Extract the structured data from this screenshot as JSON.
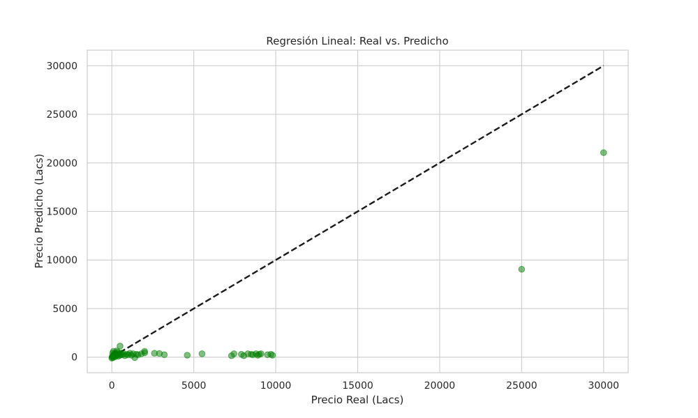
{
  "chart_data": {
    "type": "scatter",
    "title": "Regresión Lineal: Real vs. Predicho",
    "xlabel": "Precio Real (Lacs)",
    "ylabel": "Precio Predicho (Lacs)",
    "xlim": [
      -1500,
      31500
    ],
    "ylim": [
      -1600,
      31600
    ],
    "xticks": [
      0,
      5000,
      10000,
      15000,
      20000,
      25000,
      30000
    ],
    "yticks": [
      0,
      5000,
      10000,
      15000,
      20000,
      25000,
      30000
    ],
    "xtick_labels": [
      "0",
      "5000",
      "10000",
      "15000",
      "20000",
      "25000",
      "30000"
    ],
    "ytick_labels": [
      "0",
      "5000",
      "10000",
      "15000",
      "20000",
      "25000",
      "30000"
    ],
    "grid": true,
    "point_color": "#008000",
    "line_color": "#1a1a1a",
    "reference_line": {
      "x": [
        0,
        30000
      ],
      "y": [
        0,
        30000
      ],
      "style": "dashed"
    },
    "points": [
      [
        0,
        -100
      ],
      [
        20,
        30
      ],
      [
        40,
        80
      ],
      [
        60,
        -50
      ],
      [
        80,
        150
      ],
      [
        100,
        200
      ],
      [
        120,
        60
      ],
      [
        150,
        300
      ],
      [
        180,
        120
      ],
      [
        200,
        400
      ],
      [
        220,
        50
      ],
      [
        250,
        250
      ],
      [
        280,
        180
      ],
      [
        300,
        350
      ],
      [
        350,
        500
      ],
      [
        400,
        100
      ],
      [
        450,
        300
      ],
      [
        500,
        200
      ],
      [
        550,
        450
      ],
      [
        600,
        250
      ],
      [
        700,
        350
      ],
      [
        800,
        150
      ],
      [
        900,
        300
      ],
      [
        1000,
        250
      ],
      [
        1100,
        400
      ],
      [
        1200,
        200
      ],
      [
        1300,
        350
      ],
      [
        1400,
        -50
      ],
      [
        1500,
        300
      ],
      [
        1600,
        250
      ],
      [
        1800,
        350
      ],
      [
        2000,
        450
      ],
      [
        2000,
        600
      ],
      [
        500,
        1150
      ],
      [
        300,
        650
      ],
      [
        100,
        600
      ],
      [
        50,
        400
      ],
      [
        2600,
        400
      ],
      [
        2900,
        380
      ],
      [
        3200,
        250
      ],
      [
        4600,
        200
      ],
      [
        5500,
        350
      ],
      [
        7300,
        150
      ],
      [
        7450,
        350
      ],
      [
        7900,
        300
      ],
      [
        8050,
        150
      ],
      [
        8300,
        350
      ],
      [
        8500,
        300
      ],
      [
        8600,
        250
      ],
      [
        8800,
        350
      ],
      [
        8900,
        200
      ],
      [
        9000,
        300
      ],
      [
        9100,
        350
      ],
      [
        9500,
        250
      ],
      [
        9700,
        300
      ],
      [
        9800,
        200
      ],
      [
        25000,
        9050
      ],
      [
        30000,
        21050
      ]
    ]
  }
}
